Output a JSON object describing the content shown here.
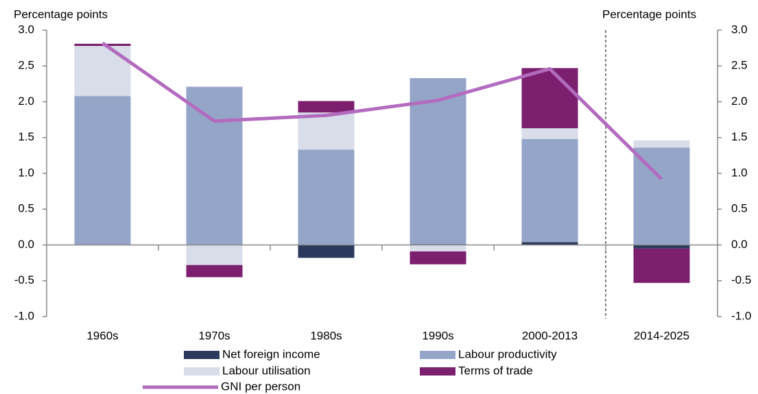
{
  "chart_data": {
    "type": "bar",
    "y_label": "Percentage points",
    "y2_label": "Percentage points",
    "categories": [
      "1960s",
      "1970s",
      "1980s",
      "1990s",
      "2000-2013",
      "2014-2025"
    ],
    "series": [
      {
        "name": "Net foreign income",
        "color": "#2b3a5c",
        "values": [
          0,
          0,
          -0.18,
          0.01,
          0.04,
          -0.05
        ]
      },
      {
        "name": "Labour productivity",
        "color": "#95a5c8",
        "values": [
          2.08,
          2.21,
          1.33,
          2.32,
          1.44,
          1.36
        ]
      },
      {
        "name": "Labour utilisation",
        "color": "#d8dde9",
        "values": [
          0.7,
          -0.28,
          0.52,
          -0.09,
          0.15,
          0.1
        ]
      },
      {
        "name": "Terms of trade",
        "color": "#7b1f6e",
        "values": [
          0.03,
          -0.17,
          0.16,
          -0.18,
          0.84,
          -0.48
        ]
      },
      {
        "name": "GNI per person",
        "color": "#b36bbf",
        "type": "line",
        "values": [
          2.82,
          1.73,
          1.81,
          2.02,
          2.46,
          0.92
        ]
      }
    ],
    "ylim": [
      -1,
      3
    ],
    "yticks": [
      {
        "value": 3,
        "label": "3.0"
      },
      2.5,
      {
        "value": 2,
        "label": "2.0"
      },
      1.5,
      {
        "value": 1,
        "label": "1.0"
      },
      0.5,
      {
        "value": 0,
        "label": "0.0"
      },
      -0.5,
      {
        "value": -1,
        "label": "-1.0"
      }
    ],
    "y2lim": [
      -1,
      3
    ],
    "y2ticks": [
      {
        "value": 3,
        "label": "3.0"
      },
      2.5,
      {
        "value": 2,
        "label": "2.0"
      },
      1.5,
      {
        "value": 1,
        "label": "1.0"
      },
      0.5,
      {
        "value": 0,
        "label": "0.0"
      },
      -0.5,
      {
        "value": -1,
        "label": "-1.0"
      }
    ],
    "grid": false
  }
}
